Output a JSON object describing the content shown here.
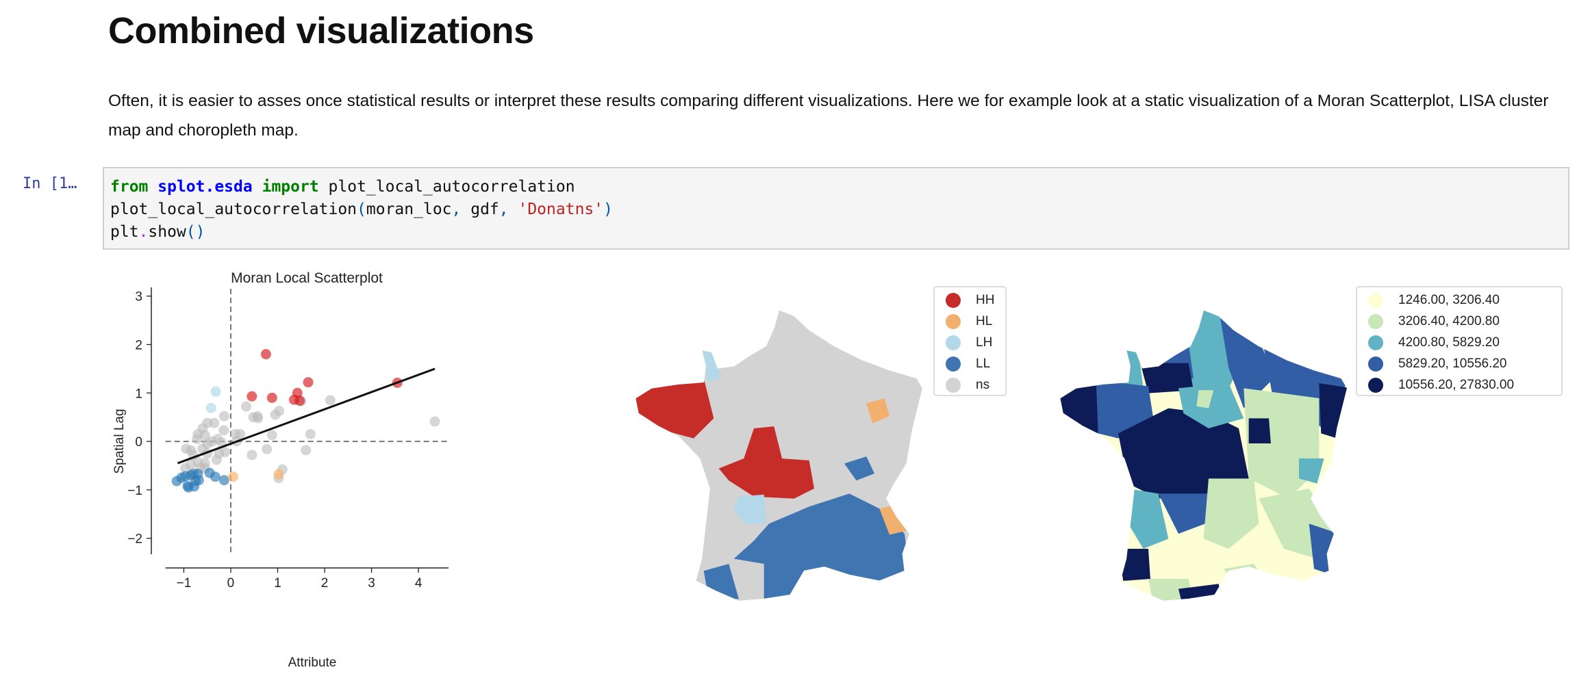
{
  "heading": "Combined visualizations",
  "paragraph": "Often, it is easier to asses once statistical results or interpret these results comparing different visualizations. Here we for example look at a static visualization of a Moran Scatterplot, LISA cluster map and choropleth map.",
  "cell": {
    "prompt": "In [1…",
    "line1": {
      "kw1": "from",
      "module": "splot.esda",
      "kw2": "import",
      "name": "plot_local_autocorrelation"
    },
    "line2": {
      "fn": "plot_local_autocorrelation",
      "open": "(",
      "args": "moran_loc",
      "comma1": ",",
      "arg2": " gdf",
      "comma2": ",",
      "str": "'Donatns'",
      "close": ")"
    },
    "line3": {
      "obj": "plt",
      "dot": ".",
      "fn": "show",
      "parens": "()"
    }
  },
  "chart_data": [
    {
      "type": "scatter",
      "title": "Moran Local Scatterplot",
      "xlabel": "Attribute",
      "ylabel": "Spatial Lag",
      "xlim": [
        -1.39,
        4.64
      ],
      "ylim": [
        -2.33,
        3.18
      ],
      "xticks": [
        "−1",
        "0",
        "1",
        "2",
        "3",
        "4"
      ],
      "xtick_values": [
        -1,
        0,
        1,
        2,
        3,
        4
      ],
      "yticks": [
        "−2",
        "−1",
        "0",
        "1",
        "2",
        "3"
      ],
      "ytick_values": [
        -2,
        -1,
        0,
        1,
        2,
        3
      ],
      "colors": {
        "HH": "#d7191c",
        "HL": "#fdae61",
        "LH": "#abd9e9",
        "LL": "#2c7bb6",
        "ns": "#bababa"
      },
      "series": [
        {
          "name": "ns",
          "points": [
            [
              -0.14,
              0.52
            ],
            [
              -0.5,
              0.38
            ],
            [
              -0.35,
              0.38
            ],
            [
              -0.6,
              0.27
            ],
            [
              -0.15,
              0.23
            ],
            [
              -0.7,
              0.15
            ],
            [
              -0.55,
              0.13
            ],
            [
              -0.72,
              0.05
            ],
            [
              -0.28,
              0.05
            ],
            [
              -0.4,
              0.0
            ],
            [
              -0.5,
              -0.05
            ],
            [
              -0.2,
              -0.02
            ],
            [
              -0.95,
              -0.15
            ],
            [
              -0.85,
              -0.18
            ],
            [
              -0.6,
              -0.15
            ],
            [
              -0.8,
              -0.28
            ],
            [
              -0.5,
              -0.25
            ],
            [
              -0.12,
              -0.22
            ],
            [
              -0.25,
              -0.25
            ],
            [
              -0.3,
              -0.38
            ],
            [
              -0.7,
              -0.42
            ],
            [
              -0.55,
              -0.45
            ],
            [
              -0.65,
              -0.55
            ],
            [
              -0.55,
              -0.55
            ],
            [
              -0.97,
              -0.55
            ],
            [
              -0.85,
              -0.48
            ],
            [
              0.1,
              0.15
            ],
            [
              0.2,
              0.15
            ],
            [
              0.12,
              0.0
            ],
            [
              0.33,
              0.72
            ],
            [
              0.48,
              0.5
            ],
            [
              0.57,
              0.52
            ],
            [
              0.58,
              0.48
            ],
            [
              0.95,
              0.55
            ],
            [
              1.03,
              0.63
            ],
            [
              0.88,
              0.13
            ],
            [
              0.45,
              -0.28
            ],
            [
              0.77,
              -0.16
            ],
            [
              1.5,
              0.83
            ],
            [
              2.12,
              0.85
            ],
            [
              1.7,
              0.15
            ],
            [
              1.6,
              -0.18
            ],
            [
              1.1,
              -0.58
            ],
            [
              1.02,
              -0.76
            ],
            [
              4.35,
              0.41
            ]
          ]
        },
        {
          "name": "LL",
          "points": [
            [
              -1.15,
              -0.82
            ],
            [
              -1.05,
              -0.75
            ],
            [
              -0.97,
              -0.72
            ],
            [
              -0.92,
              -0.92
            ],
            [
              -0.9,
              -0.95
            ],
            [
              -0.8,
              -0.67
            ],
            [
              -0.75,
              -0.82
            ],
            [
              -0.78,
              -0.93
            ],
            [
              -0.7,
              -0.67
            ],
            [
              -0.68,
              -0.8
            ],
            [
              -0.45,
              -0.65
            ],
            [
              -0.33,
              -0.73
            ],
            [
              -0.14,
              -0.8
            ],
            [
              -0.85,
              -0.7
            ]
          ]
        },
        {
          "name": "LH",
          "points": [
            [
              -0.32,
              1.03
            ],
            [
              -0.42,
              0.69
            ]
          ]
        },
        {
          "name": "HL",
          "points": [
            [
              0.05,
              -0.73
            ],
            [
              1.02,
              -0.68
            ]
          ]
        },
        {
          "name": "HH",
          "points": [
            [
              0.75,
              1.8
            ],
            [
              0.45,
              0.93
            ],
            [
              0.88,
              0.9
            ],
            [
              1.65,
              1.22
            ],
            [
              1.42,
              1.0
            ],
            [
              1.35,
              0.86
            ],
            [
              1.47,
              0.84
            ],
            [
              3.55,
              1.21
            ]
          ]
        }
      ],
      "fit_line": [
        [
          -1.13,
          -0.45
        ],
        [
          4.35,
          1.5
        ]
      ],
      "reference_lines": {
        "x": 0,
        "y": 0
      }
    }
  ],
  "lisa_legend": [
    {
      "label": "HH",
      "color": "#c62d28"
    },
    {
      "label": "HL",
      "color": "#f2b06e"
    },
    {
      "label": "LH",
      "color": "#b3d8ea"
    },
    {
      "label": "LL",
      "color": "#3f76b1"
    },
    {
      "label": "ns",
      "color": "#d3d3d3"
    }
  ],
  "choropleth_legend": [
    {
      "label": "1246.00,  3206.40",
      "color": "#fdfed4"
    },
    {
      "label": "3206.40,  4200.80",
      "color": "#c9e7b8"
    },
    {
      "label": "4200.80,  5829.20",
      "color": "#60b3c2"
    },
    {
      "label": "5829.20, 10556.20",
      "color": "#325ea6"
    },
    {
      "label": "10556.20, 27830.00",
      "color": "#0d1c56"
    }
  ]
}
